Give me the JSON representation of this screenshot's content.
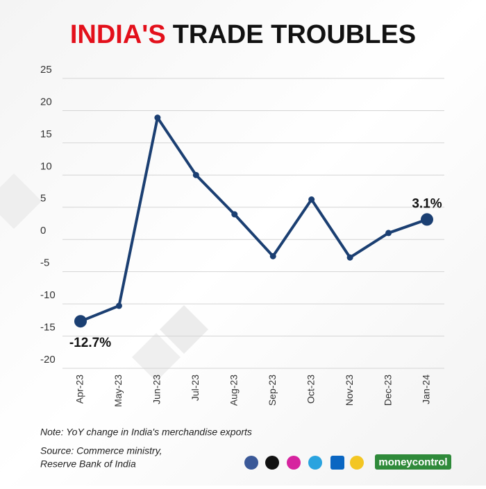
{
  "chart_data": {
    "type": "line",
    "title": [
      "INDIA'S",
      "TRADE TROUBLES"
    ],
    "title_colors": [
      "#e3101b",
      "#111111"
    ],
    "categories": [
      "Apr-23",
      "May-23",
      "Jun-23",
      "Jul-23",
      "Aug-23",
      "Sep-23",
      "Oct-23",
      "Nov-23",
      "Dec-23",
      "Jan-24"
    ],
    "values": [
      -12.7,
      -10.3,
      18.9,
      10.0,
      3.9,
      -2.6,
      6.2,
      -2.8,
      1.0,
      3.1
    ],
    "value_labels": [
      "-12.7%",
      null,
      null,
      null,
      null,
      null,
      null,
      null,
      null,
      "3.1%"
    ],
    "color": "#1b3f72",
    "ylim": [
      -20,
      25
    ],
    "yticks": [
      -20,
      -15,
      -10,
      -5,
      0,
      5,
      10,
      15,
      20,
      25
    ],
    "grid": true,
    "note": "Note: YoY change in India's merchandise exports",
    "source": [
      "Source: Commerce ministry,",
      "Reserve Bank of India"
    ],
    "brand": "moneycontrol"
  }
}
